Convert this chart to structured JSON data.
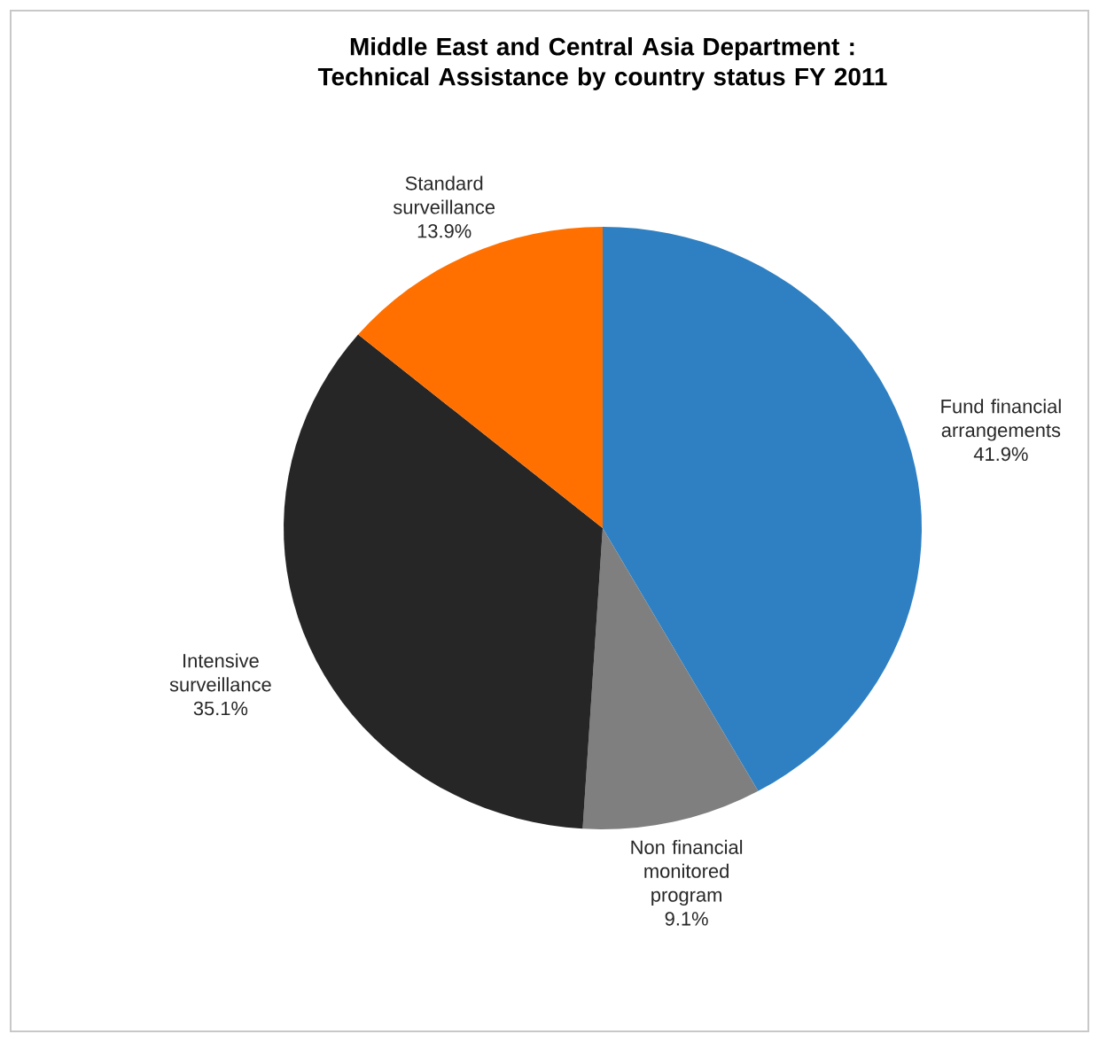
{
  "chart_data": {
    "type": "pie",
    "title": "Middle East and Central Asia Department : Technical Assistance by country status FY 2011",
    "categories": [
      "Fund financial arrangements",
      "Non financial monitored program",
      "Intensive surveillance",
      "Standard surveillance"
    ],
    "values": [
      41.9,
      9.1,
      35.1,
      13.9
    ],
    "value_labels": [
      "41.9%",
      "9.1%",
      "35.1%",
      "13.9%"
    ],
    "colors": [
      "#2e80c2",
      "#7f7f7f",
      "#262626",
      "#ff7000"
    ]
  }
}
